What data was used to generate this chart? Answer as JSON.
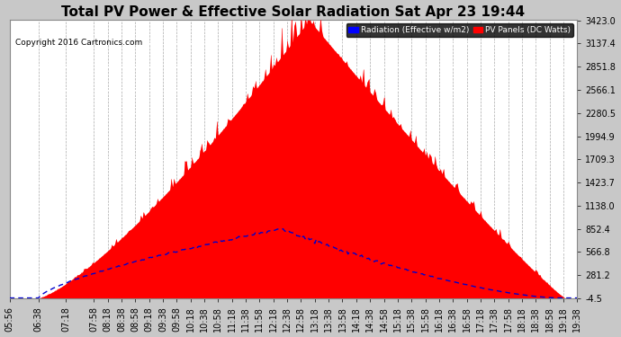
{
  "title": "Total PV Power & Effective Solar Radiation Sat Apr 23 19:44",
  "copyright": "Copyright 2016 Cartronics.com",
  "legend_blue": "Radiation (Effective w/m2)",
  "legend_red": "PV Panels (DC Watts)",
  "yticks": [
    -4.5,
    281.2,
    566.8,
    852.4,
    1138.0,
    1423.7,
    1709.3,
    1994.9,
    2280.5,
    2566.1,
    2851.8,
    3137.4,
    3423.0
  ],
  "bg_color": "#c8c8c8",
  "plot_bg": "#ffffff",
  "red_color": "#ff0000",
  "blue_color": "#0000cc",
  "title_fontsize": 11,
  "tick_fontsize": 7,
  "ymax": 3423.0,
  "ymin": -4.5,
  "xtick_labels": [
    "05:56",
    "06:38",
    "07:18",
    "07:58",
    "08:18",
    "08:38",
    "08:58",
    "09:18",
    "09:38",
    "09:58",
    "10:18",
    "10:38",
    "10:58",
    "11:18",
    "11:38",
    "11:58",
    "12:18",
    "12:38",
    "12:58",
    "13:18",
    "13:38",
    "13:58",
    "14:18",
    "14:38",
    "14:58",
    "15:18",
    "15:38",
    "15:58",
    "16:18",
    "16:38",
    "16:58",
    "17:18",
    "17:38",
    "17:58",
    "18:18",
    "18:38",
    "18:58",
    "19:18",
    "19:38"
  ]
}
